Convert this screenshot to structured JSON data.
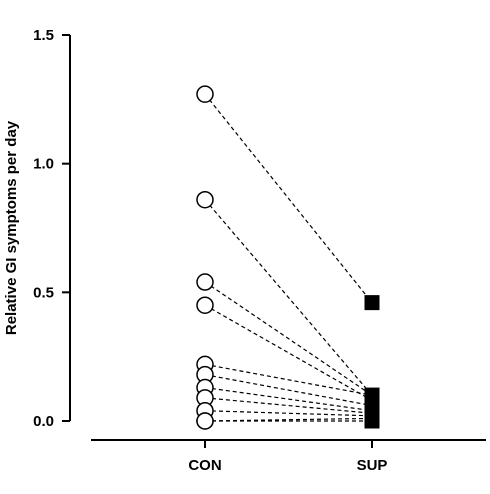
{
  "chart_data": {
    "type": "scatter",
    "ylabel": "Relative GI symptoms per day",
    "ylim": [
      0,
      1.5
    ],
    "yticks": [
      {
        "value": 0.0,
        "label": "0.0"
      },
      {
        "value": 0.5,
        "label": "0.5"
      },
      {
        "value": 1.0,
        "label": "1.0"
      },
      {
        "value": 1.5,
        "label": "1.5"
      }
    ],
    "categories": [
      "CON",
      "SUP"
    ],
    "pairs": [
      {
        "con": 1.27,
        "sup": 0.46
      },
      {
        "con": 0.86,
        "sup": 0.1
      },
      {
        "con": 0.54,
        "sup": 0.1
      },
      {
        "con": 0.45,
        "sup": 0.08
      },
      {
        "con": 0.22,
        "sup": 0.1
      },
      {
        "con": 0.18,
        "sup": 0.06
      },
      {
        "con": 0.13,
        "sup": 0.04
      },
      {
        "con": 0.09,
        "sup": 0.03
      },
      {
        "con": 0.04,
        "sup": 0.02
      },
      {
        "con": 0.0,
        "sup": 0.01
      },
      {
        "con": 0.0,
        "sup": 0.0
      }
    ],
    "markers": {
      "CON": "open-circle",
      "SUP": "filled-square"
    },
    "grid": false
  }
}
